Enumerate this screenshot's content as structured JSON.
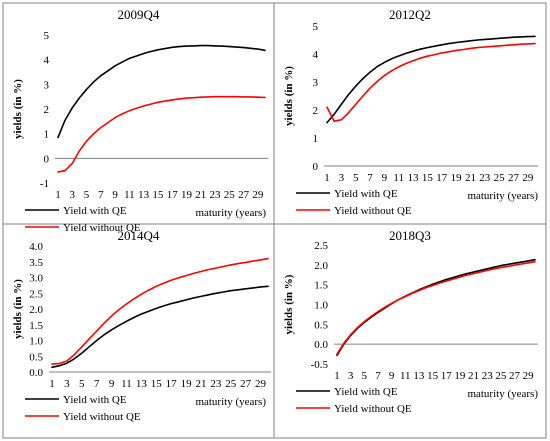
{
  "colors": {
    "with_qe": "#000000",
    "without_qe": "#ff0000",
    "border": "#808080",
    "axis": "#808080"
  },
  "chart_data": [
    {
      "type": "line",
      "title": "2009Q4",
      "ylabel": "yields (in %)",
      "xlabel": "maturity (years)",
      "x_tick_labels": [
        "1",
        "3",
        "5",
        "7",
        "9",
        "11",
        "13",
        "15",
        "17",
        "19",
        "21",
        "23",
        "25",
        "27",
        "29"
      ],
      "y_tick_labels": [
        "-1",
        "0",
        "1",
        "2",
        "3",
        "4",
        "5"
      ],
      "ylim": [
        -1,
        5
      ],
      "x": [
        1,
        2,
        3,
        4,
        5,
        6,
        7,
        8,
        9,
        10,
        11,
        12,
        13,
        14,
        15,
        16,
        17,
        18,
        19,
        20,
        21,
        22,
        23,
        24,
        25,
        26,
        27,
        28,
        29,
        30
      ],
      "series": [
        {
          "name": "Yield with QE",
          "color": "#000000",
          "values": [
            0.85,
            1.55,
            2.05,
            2.45,
            2.8,
            3.1,
            3.35,
            3.55,
            3.75,
            3.9,
            4.05,
            4.15,
            4.25,
            4.33,
            4.4,
            4.45,
            4.5,
            4.53,
            4.55,
            4.56,
            4.57,
            4.57,
            4.56,
            4.55,
            4.53,
            4.51,
            4.49,
            4.46,
            4.43,
            4.38
          ]
        },
        {
          "name": "Yield without QE",
          "color": "#ff0000",
          "values": [
            -0.55,
            -0.5,
            -0.2,
            0.3,
            0.7,
            1.0,
            1.25,
            1.45,
            1.65,
            1.8,
            1.93,
            2.03,
            2.12,
            2.2,
            2.27,
            2.32,
            2.37,
            2.41,
            2.44,
            2.46,
            2.48,
            2.49,
            2.5,
            2.5,
            2.5,
            2.5,
            2.49,
            2.49,
            2.48,
            2.47
          ]
        }
      ]
    },
    {
      "type": "line",
      "title": "2012Q2",
      "ylabel": "yields (in %)",
      "xlabel": "maturity (years)",
      "x_tick_labels": [
        "1",
        "3",
        "5",
        "7",
        "9",
        "11",
        "13",
        "15",
        "17",
        "19",
        "21",
        "23",
        "25",
        "27",
        "29"
      ],
      "y_tick_labels": [
        "0",
        "1",
        "2",
        "3",
        "4",
        "5"
      ],
      "ylim": [
        0,
        5
      ],
      "x": [
        1,
        2,
        3,
        4,
        5,
        6,
        7,
        8,
        9,
        10,
        11,
        12,
        13,
        14,
        15,
        16,
        17,
        18,
        19,
        20,
        21,
        22,
        23,
        24,
        25,
        26,
        27,
        28,
        29,
        30
      ],
      "series": [
        {
          "name": "Yield with QE",
          "color": "#000000",
          "values": [
            1.55,
            1.85,
            2.2,
            2.55,
            2.85,
            3.12,
            3.35,
            3.55,
            3.7,
            3.83,
            3.93,
            4.02,
            4.1,
            4.17,
            4.23,
            4.28,
            4.33,
            4.37,
            4.41,
            4.44,
            4.47,
            4.5,
            4.52,
            4.54,
            4.56,
            4.58,
            4.6,
            4.61,
            4.62,
            4.63
          ]
        },
        {
          "name": "Yield without QE",
          "color": "#ff0000",
          "values": [
            2.1,
            1.6,
            1.65,
            1.9,
            2.2,
            2.5,
            2.78,
            3.02,
            3.23,
            3.4,
            3.54,
            3.66,
            3.76,
            3.85,
            3.92,
            3.98,
            4.04,
            4.08,
            4.13,
            4.16,
            4.2,
            4.23,
            4.25,
            4.27,
            4.29,
            4.31,
            4.33,
            4.35,
            4.36,
            4.37
          ]
        }
      ]
    },
    {
      "type": "line",
      "title": "2014Q4",
      "ylabel": "yields (in %)",
      "xlabel": "maturity (years)",
      "x_tick_labels": [
        "1",
        "3",
        "5",
        "7",
        "9",
        "11",
        "13",
        "15",
        "17",
        "19",
        "21",
        "23",
        "25",
        "27",
        "29"
      ],
      "y_tick_labels": [
        "0.0",
        "0.5",
        "1.0",
        "1.5",
        "2.0",
        "2.5",
        "3.0",
        "3.5",
        "4.0"
      ],
      "ylim": [
        0,
        4
      ],
      "x": [
        1,
        2,
        3,
        4,
        5,
        6,
        7,
        8,
        9,
        10,
        11,
        12,
        13,
        14,
        15,
        16,
        17,
        18,
        19,
        20,
        21,
        22,
        23,
        24,
        25,
        26,
        27,
        28,
        29,
        30
      ],
      "series": [
        {
          "name": "Yield with QE",
          "color": "#000000",
          "values": [
            0.15,
            0.2,
            0.28,
            0.42,
            0.6,
            0.8,
            1.0,
            1.18,
            1.34,
            1.48,
            1.61,
            1.73,
            1.84,
            1.93,
            2.02,
            2.1,
            2.17,
            2.23,
            2.29,
            2.35,
            2.4,
            2.45,
            2.5,
            2.54,
            2.58,
            2.61,
            2.64,
            2.67,
            2.7,
            2.72
          ]
        },
        {
          "name": "Yield without QE",
          "color": "#ff0000",
          "values": [
            0.25,
            0.27,
            0.35,
            0.55,
            0.8,
            1.05,
            1.3,
            1.55,
            1.78,
            1.98,
            2.16,
            2.32,
            2.47,
            2.6,
            2.72,
            2.82,
            2.91,
            2.99,
            3.06,
            3.13,
            3.19,
            3.25,
            3.3,
            3.35,
            3.4,
            3.44,
            3.48,
            3.52,
            3.56,
            3.6
          ]
        }
      ]
    },
    {
      "type": "line",
      "title": "2018Q3",
      "ylabel": "yields (in %)",
      "xlabel": "maturity (years)",
      "x_tick_labels": [
        "1",
        "3",
        "5",
        "7",
        "9",
        "11",
        "13",
        "15",
        "17",
        "19",
        "21",
        "23",
        "25",
        "27",
        "29"
      ],
      "y_tick_labels": [
        "-0.5",
        "0.0",
        "0.5",
        "1.0",
        "1.5",
        "2.0",
        "2.5"
      ],
      "ylim": [
        -0.5,
        2.5
      ],
      "x": [
        1,
        2,
        3,
        4,
        5,
        6,
        7,
        8,
        9,
        10,
        11,
        12,
        13,
        14,
        15,
        16,
        17,
        18,
        19,
        20,
        21,
        22,
        23,
        24,
        25,
        26,
        27,
        28,
        29,
        30
      ],
      "series": [
        {
          "name": "Yield with QE",
          "color": "#000000",
          "values": [
            -0.28,
            0.0,
            0.22,
            0.4,
            0.55,
            0.68,
            0.8,
            0.91,
            1.02,
            1.12,
            1.21,
            1.29,
            1.37,
            1.44,
            1.51,
            1.57,
            1.63,
            1.68,
            1.73,
            1.78,
            1.82,
            1.86,
            1.9,
            1.94,
            1.98,
            2.01,
            2.04,
            2.07,
            2.1,
            2.13
          ]
        },
        {
          "name": "Yield without QE",
          "color": "#ff0000",
          "values": [
            -0.25,
            0.02,
            0.24,
            0.42,
            0.57,
            0.7,
            0.82,
            0.93,
            1.03,
            1.12,
            1.2,
            1.28,
            1.35,
            1.42,
            1.48,
            1.54,
            1.59,
            1.64,
            1.69,
            1.74,
            1.78,
            1.82,
            1.86,
            1.9,
            1.93,
            1.96,
            1.99,
            2.02,
            2.05,
            2.08
          ]
        }
      ]
    }
  ]
}
